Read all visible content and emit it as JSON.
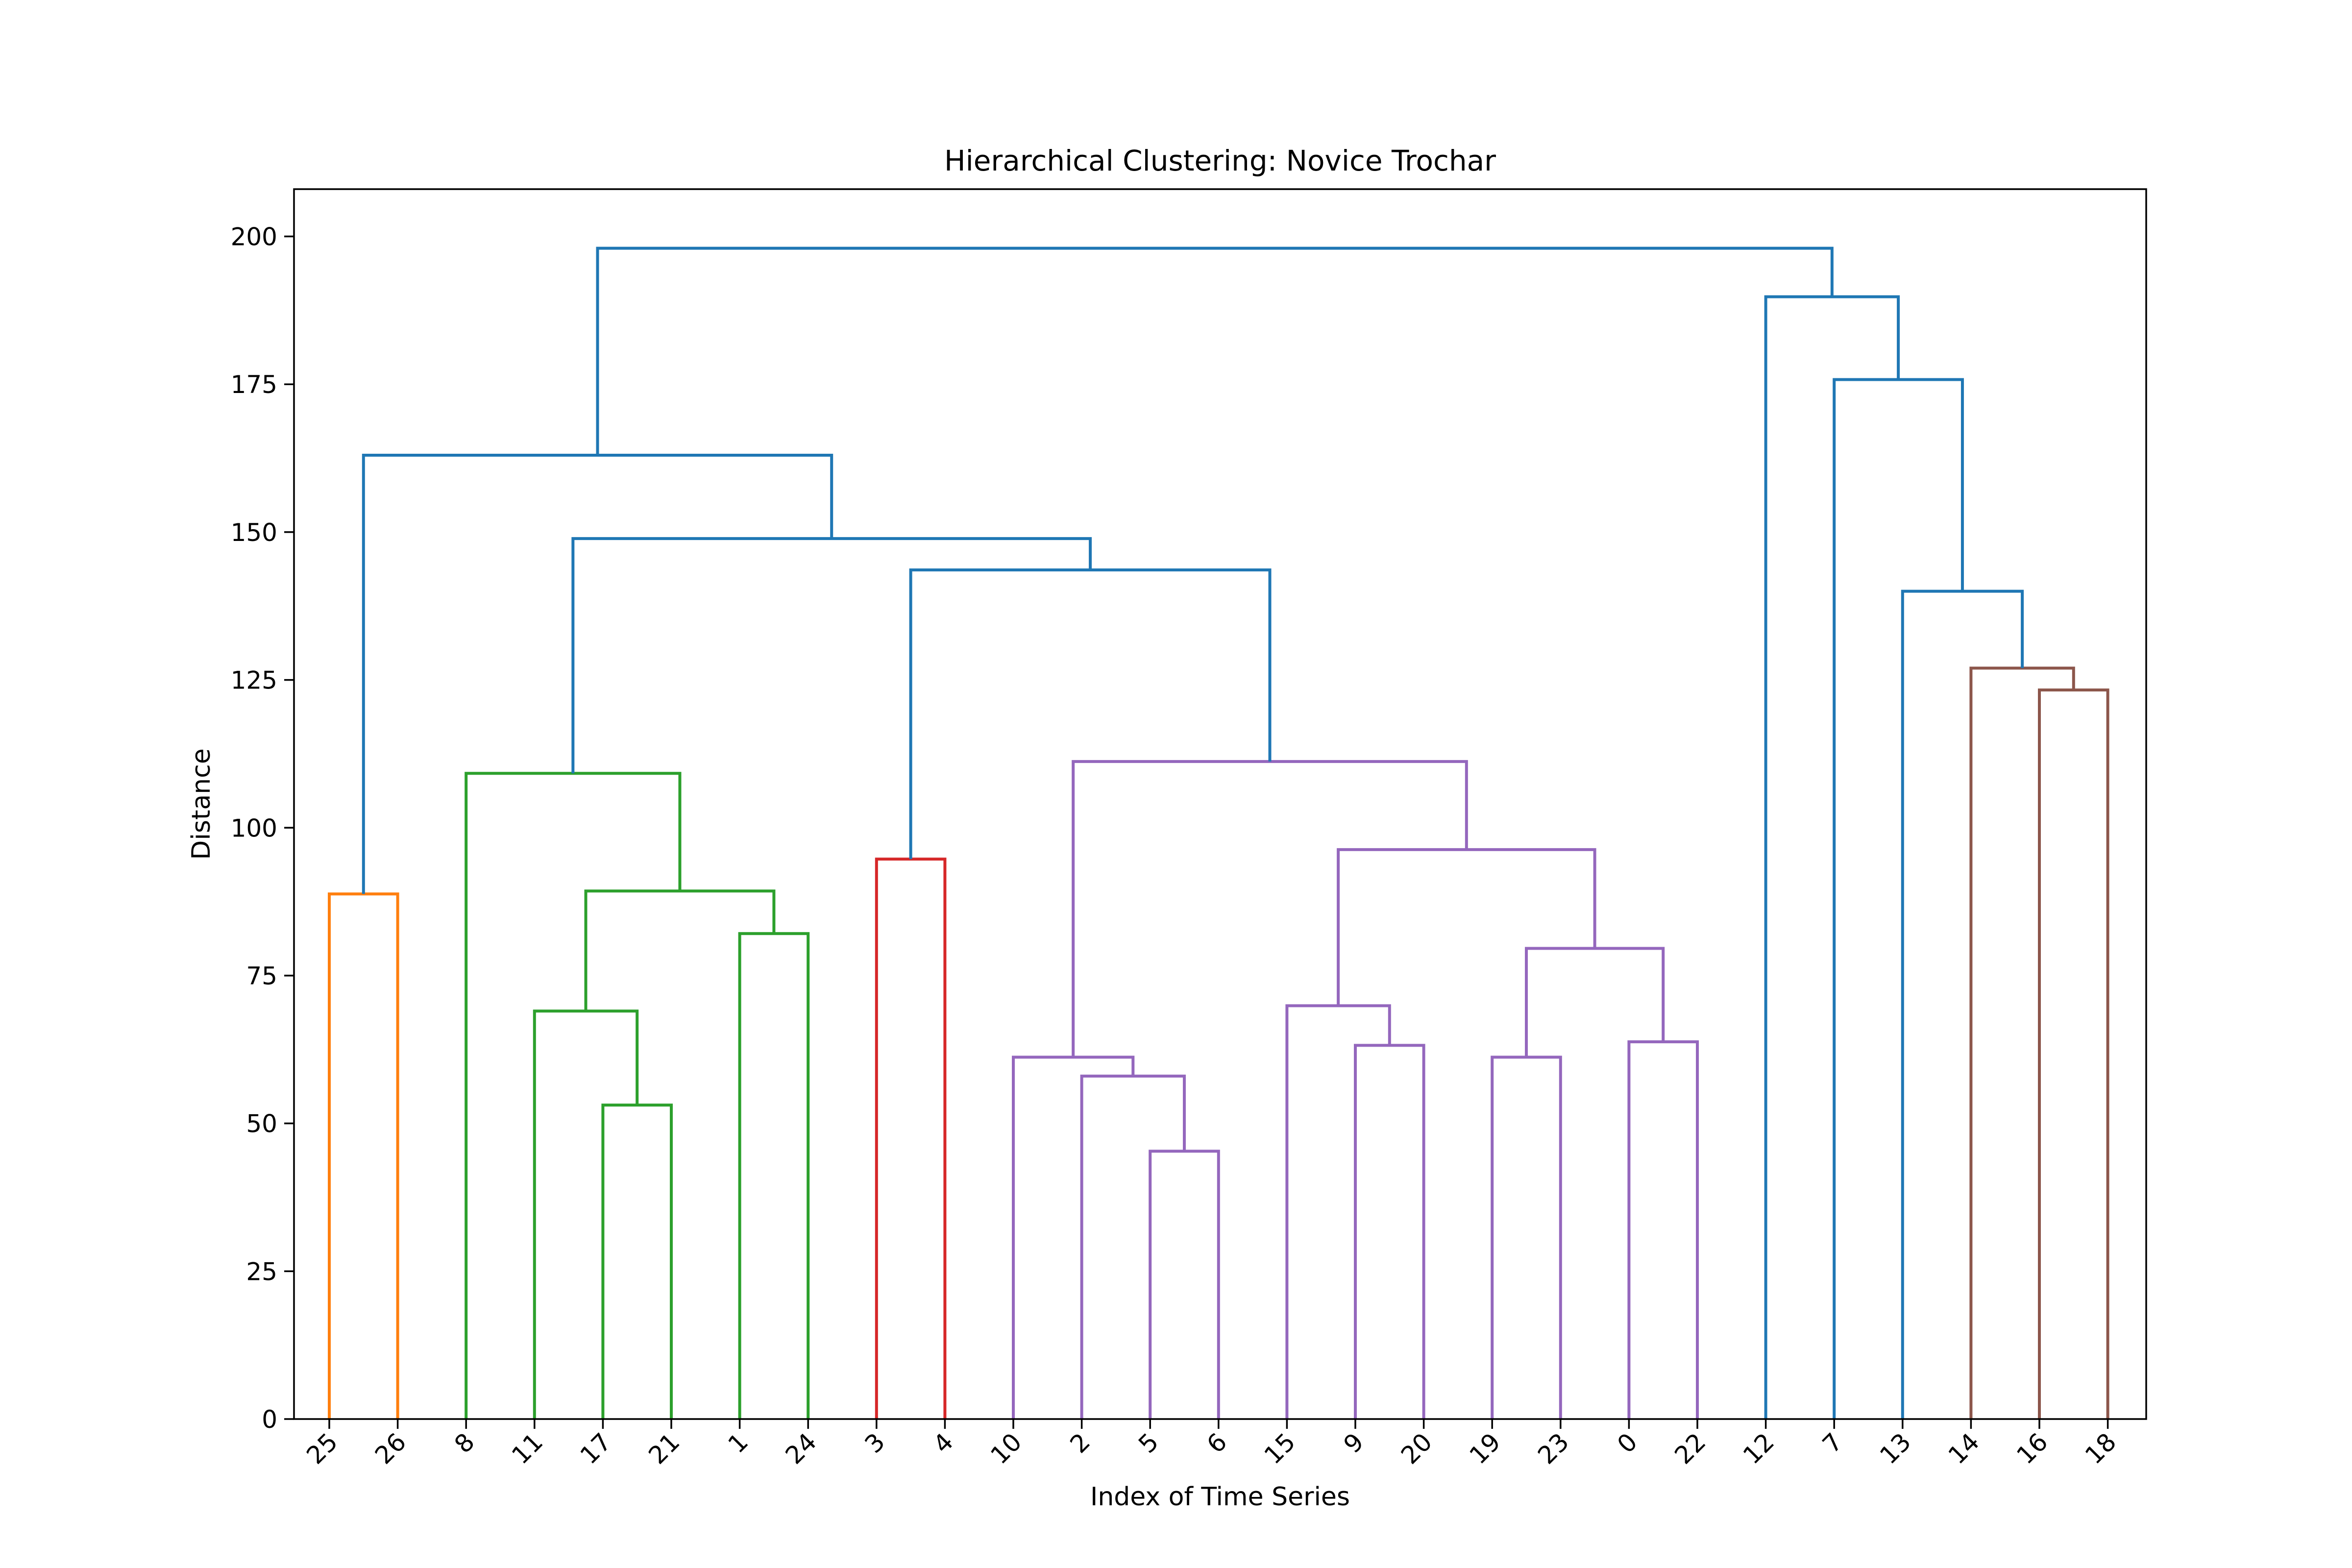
{
  "chart_data": {
    "type": "dendrogram",
    "title": "Hierarchical Clustering: Novice Trochar",
    "xlabel": "Index of Time Series",
    "ylabel": "Distance",
    "ylim": [
      0,
      208
    ],
    "yticks": [
      0,
      25,
      50,
      75,
      100,
      125,
      150,
      175,
      200
    ],
    "grid": false,
    "leaf_order": [
      "25",
      "26",
      "8",
      "11",
      "17",
      "21",
      "1",
      "24",
      "3",
      "4",
      "10",
      "2",
      "5",
      "6",
      "15",
      "9",
      "20",
      "19",
      "23",
      "0",
      "22",
      "12",
      "7",
      "13",
      "14",
      "16",
      "18"
    ],
    "colors": {
      "orange": "#ff7f0e",
      "green": "#2ca02c",
      "red": "#d62728",
      "purple": "#9467bd",
      "brown": "#8c564b",
      "blue": "#1f77b4"
    },
    "links": [
      {
        "left": "L0",
        "right": "L1",
        "height": 88.8,
        "color": "orange"
      },
      {
        "left": "L4",
        "right": "L5",
        "height": 53.1,
        "color": "green"
      },
      {
        "left": "L3",
        "right": "N1",
        "height": 69.0,
        "color": "green"
      },
      {
        "left": "L6",
        "right": "L7",
        "height": 82.1,
        "color": "green"
      },
      {
        "left": "N2",
        "right": "N3",
        "height": 89.3,
        "color": "green"
      },
      {
        "left": "L2",
        "right": "N4",
        "height": 109.2,
        "color": "green"
      },
      {
        "left": "L8",
        "right": "L9",
        "height": 94.7,
        "color": "red"
      },
      {
        "left": "L12",
        "right": "L13",
        "height": 45.3,
        "color": "purple"
      },
      {
        "left": "L11",
        "right": "N7",
        "height": 58.0,
        "color": "purple"
      },
      {
        "left": "L10",
        "right": "N8",
        "height": 61.2,
        "color": "purple"
      },
      {
        "left": "L15",
        "right": "L16",
        "height": 63.2,
        "color": "purple"
      },
      {
        "left": "L14",
        "right": "N10",
        "height": 69.9,
        "color": "purple"
      },
      {
        "left": "L17",
        "right": "L18",
        "height": 61.2,
        "color": "purple"
      },
      {
        "left": "L19",
        "right": "L20",
        "height": 63.8,
        "color": "purple"
      },
      {
        "left": "N12",
        "right": "N13",
        "height": 79.6,
        "color": "purple"
      },
      {
        "left": "N11",
        "right": "N14",
        "height": 96.3,
        "color": "purple"
      },
      {
        "left": "N9",
        "right": "N15",
        "height": 111.2,
        "color": "purple"
      },
      {
        "left": "L25",
        "right": "L26",
        "height": 123.3,
        "color": "brown"
      },
      {
        "left": "L24",
        "right": "N17",
        "height": 127.0,
        "color": "brown"
      },
      {
        "left": "N6",
        "right": "N16",
        "height": 143.6,
        "color": "blue"
      },
      {
        "left": "N5",
        "right": "N19",
        "height": 148.9,
        "color": "blue"
      },
      {
        "left": "N0",
        "right": "N20",
        "height": 163.0,
        "color": "blue"
      },
      {
        "left": "L23",
        "right": "N18",
        "height": 140.0,
        "color": "blue"
      },
      {
        "left": "L22",
        "right": "N22",
        "height": 175.8,
        "color": "blue"
      },
      {
        "left": "L21",
        "right": "N23",
        "height": 189.8,
        "color": "blue"
      },
      {
        "left": "N21",
        "right": "N24",
        "height": 198.0,
        "color": "blue"
      }
    ]
  }
}
